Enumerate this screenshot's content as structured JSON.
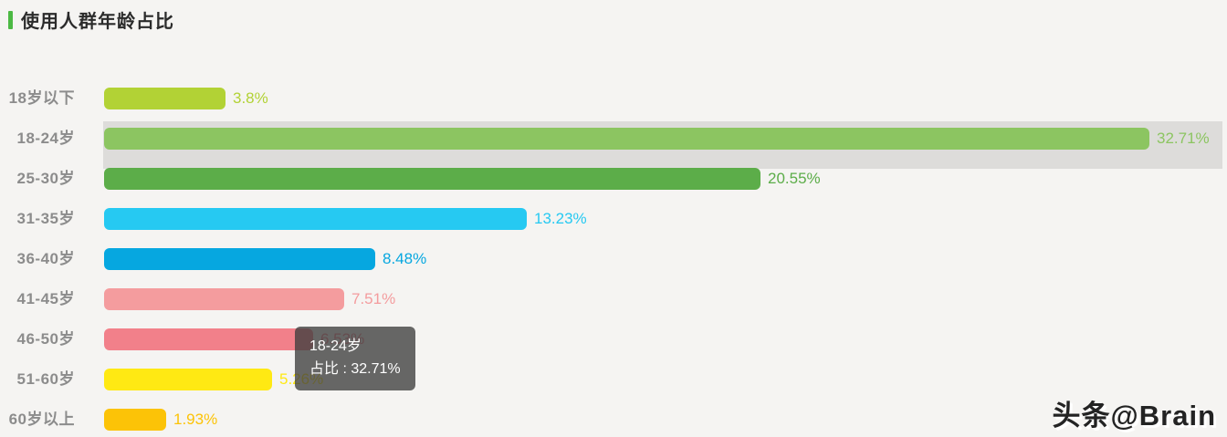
{
  "title": {
    "text": "使用人群年龄占比",
    "accent_color": "#4cb944"
  },
  "chart_data": {
    "type": "bar",
    "orientation": "horizontal",
    "title": "使用人群年龄占比",
    "categories": [
      "18岁以下",
      "18-24岁",
      "25-30岁",
      "31-35岁",
      "36-40岁",
      "41-45岁",
      "46-50岁",
      "51-60岁",
      "60岁以上"
    ],
    "values": [
      3.8,
      32.71,
      20.55,
      13.23,
      8.48,
      7.51,
      6.53,
      5.26,
      1.93
    ],
    "value_labels": [
      "3.8%",
      "32.71%",
      "20.55%",
      "13.23%",
      "8.48%",
      "7.51%",
      "6.53%",
      "5.26%",
      "1.93%"
    ],
    "bar_colors": [
      "#b2d235",
      "#8cc561",
      "#5cad49",
      "#26c9f2",
      "#06a7e0",
      "#f49c9e",
      "#f2808a",
      "#ffe913",
      "#fcc307"
    ],
    "xlim": [
      0,
      35
    ],
    "grid": false,
    "legend": false,
    "highlighted_category": "18-24岁",
    "highlight_band_color": "#dddcda"
  },
  "tooltip": {
    "category": "18-24岁",
    "value_line": "占比 : 32.71%",
    "bg_color": "rgba(62,62,62,0.78)"
  },
  "watermark": {
    "text": "头条@Brain"
  }
}
